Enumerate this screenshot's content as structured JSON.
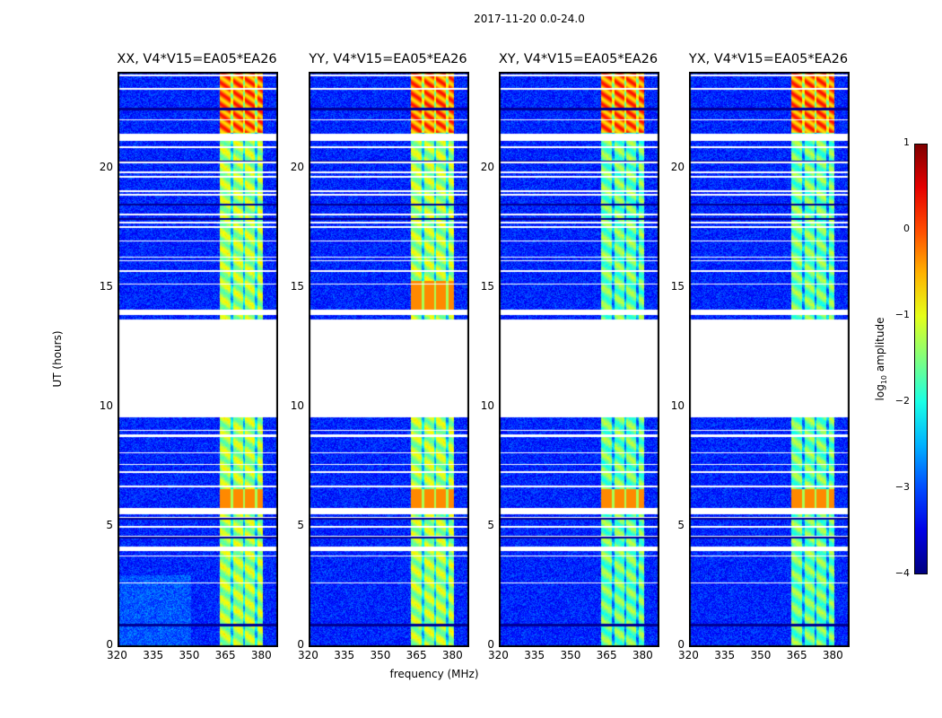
{
  "chart_data": {
    "type": "heatmap",
    "title": "2017-11-20 0.0-24.0",
    "xlabel": "frequency (MHz)",
    "ylabel": "UT (hours)",
    "xlim": [
      320,
      386
    ],
    "ylim": [
      0,
      24
    ],
    "xticks": [
      "320",
      "335",
      "350",
      "365",
      "380"
    ],
    "xtick_values": [
      320,
      335,
      350,
      365,
      380
    ],
    "yticks": [
      "0",
      "5",
      "10",
      "15",
      "20"
    ],
    "ytick_values": [
      0,
      5,
      10,
      15,
      20
    ],
    "panels": [
      {
        "title": "XX, V4*V15=EA05*EA26"
      },
      {
        "title": "YY, V4*V15=EA05*EA26"
      },
      {
        "title": "XY, V4*V15=EA05*EA26"
      },
      {
        "title": "YX, V4*V15=EA05*EA26"
      }
    ],
    "colorbar": {
      "label": "log",
      "label_sub": "10",
      "label_rest": " amplitude",
      "colormap": "jet",
      "range": [
        -4,
        1
      ],
      "ticks": [
        "1",
        "0",
        "−1",
        "−2",
        "−3",
        "−4"
      ],
      "tick_values": [
        1,
        0,
        -1,
        -2,
        -3,
        -4
      ]
    },
    "signal_band_mhz": [
      362,
      381
    ],
    "flagged_hours": [
      [
        9.6,
        13.7
      ],
      [
        5.55,
        5.8
      ],
      [
        4.0,
        4.15
      ],
      [
        13.95,
        14.1
      ],
      [
        21.25,
        21.45
      ]
    ]
  }
}
